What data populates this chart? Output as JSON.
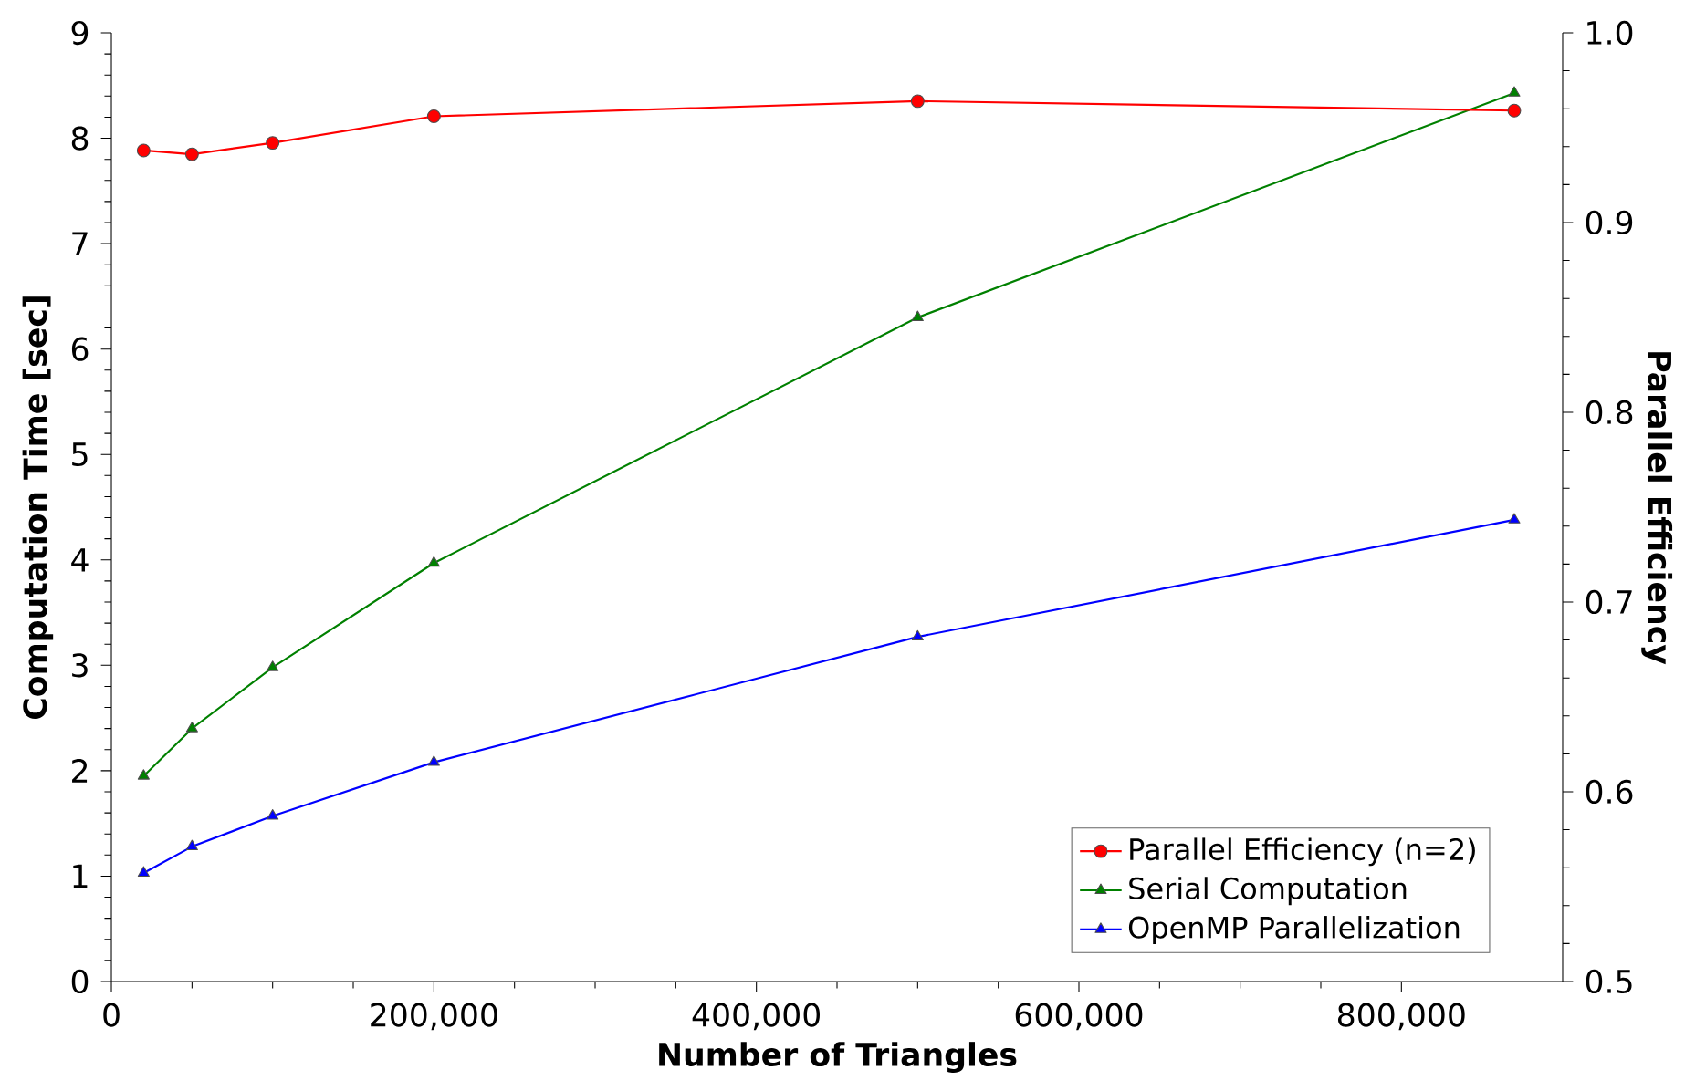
{
  "chart_data": {
    "type": "line",
    "xlabel": "Number of Triangles",
    "ylabel": "Computation Time [sec]",
    "y2label": "Parallel Efficiency",
    "x": [
      20000,
      50000,
      100000,
      200000,
      500000,
      870000
    ],
    "series": [
      {
        "name": "Parallel Efficiency (n=2)",
        "color": "#ff0000",
        "axis": "y2",
        "marker": "circle",
        "values": [
          0.938,
          0.936,
          0.942,
          0.956,
          0.964,
          0.959
        ]
      },
      {
        "name": "Serial Computation",
        "color": "#008000",
        "axis": "y",
        "marker": "triangle-down",
        "values": [
          1.95,
          2.4,
          2.98,
          3.97,
          6.3,
          8.43
        ]
      },
      {
        "name": "OpenMP Parallelization",
        "color": "#0000ff",
        "axis": "y",
        "marker": "triangle",
        "values": [
          1.03,
          1.28,
          1.57,
          2.08,
          3.27,
          4.38
        ]
      }
    ],
    "xlim": [
      0,
      900000
    ],
    "xticks": [
      {
        "value": 0,
        "label": "0"
      },
      {
        "value": 200000,
        "label": "200,000"
      },
      {
        "value": 400000,
        "label": "400,000"
      },
      {
        "value": 600000,
        "label": "600,000"
      },
      {
        "value": 800000,
        "label": "800,000"
      }
    ],
    "ylim": [
      0,
      9
    ],
    "yticks": [
      0,
      1,
      2,
      3,
      4,
      5,
      6,
      7,
      8,
      9
    ],
    "y2lim": [
      0.5,
      1.0
    ],
    "y2ticks": [
      0.5,
      0.6,
      0.7,
      0.8,
      0.9,
      {
        "value": 1.0,
        "label": "1.0"
      }
    ],
    "grid": false,
    "legend": "bottom right",
    "line_style": "solid"
  }
}
